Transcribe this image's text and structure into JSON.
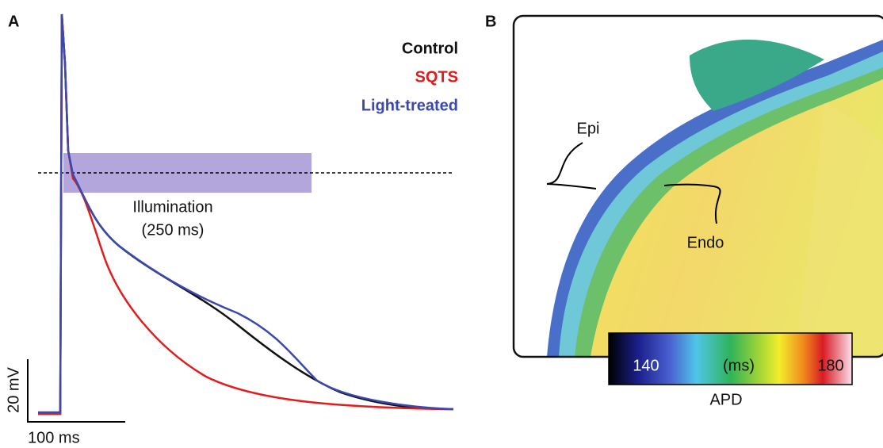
{
  "panel_a": {
    "label": "A",
    "legend": [
      "Control",
      "SQTS",
      "Light-treated"
    ],
    "illumination": "Illumination",
    "duration": "(250 ms)",
    "scale_voltage": "20 mV",
    "scale_time": "100 ms"
  },
  "panel_b": {
    "label": "B",
    "epi": "Epi",
    "endo": "Endo",
    "colorbar": {
      "low": "140",
      "unit": "(ms)",
      "high": "180",
      "title": "APD"
    }
  }
}
